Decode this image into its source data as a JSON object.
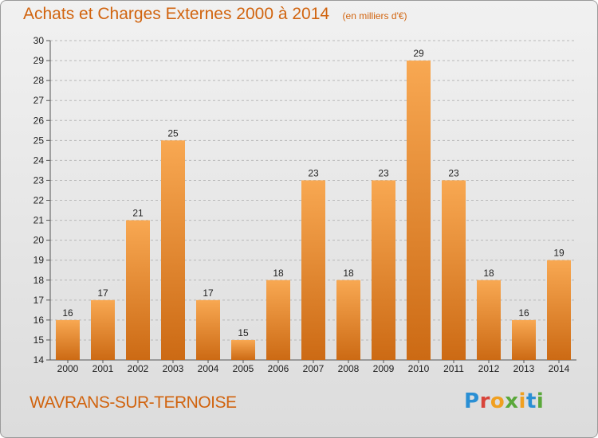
{
  "header": {
    "title": "Achats et Charges Externes 2000 à 2014",
    "subtitle": "(en milliers d'€)"
  },
  "footer": {
    "commune": "WAVRANS-SUR-TERNOISE",
    "logo_letters": [
      "P",
      "r",
      "o",
      "x",
      "i",
      "t",
      "i"
    ]
  },
  "colors": {
    "bar_light": "#f8a852",
    "bar_dark": "#cc6a14",
    "title": "#d1640f",
    "grid": "#b8b8b8"
  },
  "chart_data": {
    "type": "bar",
    "title": "Achats et Charges Externes 2000 à 2014",
    "subtitle": "(en milliers d'€)",
    "categories": [
      "2000",
      "2001",
      "2002",
      "2003",
      "2004",
      "2005",
      "2006",
      "2007",
      "2008",
      "2009",
      "2010",
      "2011",
      "2012",
      "2013",
      "2014"
    ],
    "values": [
      16,
      17,
      21,
      25,
      17,
      15,
      18,
      23,
      18,
      23,
      29,
      23,
      18,
      16,
      19
    ],
    "ylim": [
      14,
      30
    ],
    "yticks": [
      14,
      15,
      16,
      17,
      18,
      19,
      20,
      21,
      22,
      23,
      24,
      25,
      26,
      27,
      28,
      29,
      30
    ],
    "grid": "horizontal dashed",
    "data_labels": true
  }
}
